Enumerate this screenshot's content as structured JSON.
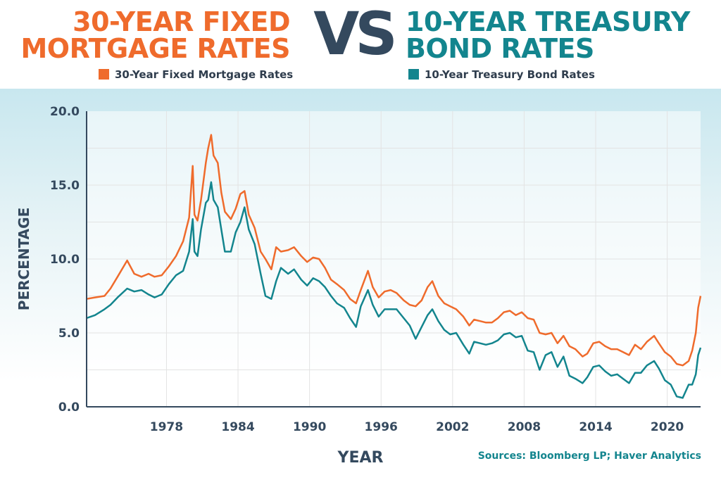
{
  "header": {
    "title_left_line1": "30-YEAR FIXED",
    "title_left_line2": "MORTGAGE RATES",
    "vs": "VS",
    "title_right_line1": "10-YEAR TREASURY",
    "title_right_line2": "BOND RATES"
  },
  "colors": {
    "mortgage": "#ef6b2c",
    "treasury": "#13858e",
    "axis": "#34495e",
    "grid": "#e3e3e3"
  },
  "sources": "Sources: Bloomberg LP; Haver Analytics",
  "chart_data": {
    "type": "line",
    "xlabel": "YEAR",
    "ylabel": "PERCENTAGE",
    "xlim": [
      1971.3,
      2022.8
    ],
    "ylim": [
      0,
      20
    ],
    "xticks": [
      1978,
      1984,
      1990,
      1996,
      2002,
      2008,
      2014,
      2020
    ],
    "yticks": [
      0,
      5,
      10,
      15,
      20
    ],
    "ytick_labels": [
      "0.0",
      "5.0",
      "10.0",
      "15.0",
      "20.0"
    ],
    "grid": true,
    "legend_position": "top",
    "series": [
      {
        "name": "30-Year Fixed Mortgage Rates",
        "color": "#ef6b2c",
        "x": [
          1971.3,
          1972,
          1972.8,
          1973.3,
          1973.9,
          1974.7,
          1975.3,
          1975.9,
          1976.5,
          1977,
          1977.6,
          1978.2,
          1978.8,
          1979.4,
          1979.9,
          1980.2,
          1980.35,
          1980.6,
          1980.9,
          1981.3,
          1981.5,
          1981.75,
          1981.95,
          1982.3,
          1982.6,
          1982.9,
          1983.4,
          1983.8,
          1984.2,
          1984.55,
          1984.9,
          1985.4,
          1985.9,
          1986.3,
          1986.8,
          1987.2,
          1987.6,
          1988.2,
          1988.7,
          1989.3,
          1989.8,
          1990.3,
          1990.8,
          1991.3,
          1991.8,
          1992.3,
          1992.9,
          1993.4,
          1993.9,
          1994.3,
          1994.9,
          1995.3,
          1995.8,
          1996.3,
          1996.8,
          1997.3,
          1997.9,
          1998.4,
          1998.9,
          1999.4,
          1999.9,
          2000.3,
          2000.8,
          2001.3,
          2001.8,
          2002.3,
          2002.9,
          2003.4,
          2003.8,
          2004.3,
          2004.8,
          2005.3,
          2005.8,
          2006.3,
          2006.8,
          2007.3,
          2007.8,
          2008.3,
          2008.8,
          2009.3,
          2009.8,
          2010.3,
          2010.8,
          2011.3,
          2011.8,
          2012.3,
          2012.9,
          2013.3,
          2013.8,
          2014.3,
          2014.8,
          2015.3,
          2015.8,
          2016.3,
          2016.8,
          2017.3,
          2017.8,
          2018.3,
          2018.9,
          2019.3,
          2019.8,
          2020.3,
          2020.8,
          2021.3,
          2021.8,
          2022.1,
          2022.4,
          2022.6,
          2022.8
        ],
        "y": [
          7.3,
          7.4,
          7.5,
          8.0,
          8.8,
          9.9,
          9.0,
          8.8,
          9.0,
          8.8,
          8.9,
          9.5,
          10.2,
          11.2,
          12.8,
          16.3,
          13.0,
          12.6,
          14.0,
          16.5,
          17.5,
          18.4,
          17.0,
          16.5,
          14.5,
          13.2,
          12.7,
          13.4,
          14.4,
          14.6,
          13.0,
          12.1,
          10.5,
          10.0,
          9.3,
          10.8,
          10.5,
          10.6,
          10.8,
          10.2,
          9.8,
          10.1,
          10.0,
          9.4,
          8.6,
          8.3,
          7.9,
          7.3,
          7.0,
          7.9,
          9.2,
          8.1,
          7.4,
          7.8,
          7.9,
          7.7,
          7.2,
          6.9,
          6.8,
          7.2,
          8.1,
          8.5,
          7.5,
          7.0,
          6.8,
          6.6,
          6.1,
          5.5,
          5.9,
          5.8,
          5.7,
          5.7,
          6.0,
          6.4,
          6.5,
          6.2,
          6.4,
          6.0,
          5.9,
          5.0,
          4.9,
          5.0,
          4.3,
          4.8,
          4.1,
          3.9,
          3.4,
          3.6,
          4.3,
          4.4,
          4.1,
          3.9,
          3.9,
          3.7,
          3.5,
          4.2,
          3.9,
          4.4,
          4.8,
          4.3,
          3.7,
          3.4,
          2.9,
          2.8,
          3.1,
          3.8,
          5.0,
          6.7,
          7.5
        ]
      },
      {
        "name": "10-Year Treasury Bond Rates",
        "color": "#13858e",
        "x": [
          1971.3,
          1972,
          1972.8,
          1973.3,
          1973.9,
          1974.7,
          1975.3,
          1975.9,
          1976.5,
          1977,
          1977.6,
          1978.2,
          1978.8,
          1979.4,
          1979.9,
          1980.2,
          1980.35,
          1980.6,
          1980.9,
          1981.3,
          1981.5,
          1981.75,
          1981.95,
          1982.3,
          1982.6,
          1982.9,
          1983.4,
          1983.8,
          1984.2,
          1984.55,
          1984.9,
          1985.4,
          1985.9,
          1986.3,
          1986.8,
          1987.2,
          1987.6,
          1988.2,
          1988.7,
          1989.3,
          1989.8,
          1990.3,
          1990.8,
          1991.3,
          1991.8,
          1992.3,
          1992.9,
          1993.4,
          1993.9,
          1994.3,
          1994.9,
          1995.3,
          1995.8,
          1996.3,
          1996.8,
          1997.3,
          1997.9,
          1998.4,
          1998.9,
          1999.4,
          1999.9,
          2000.3,
          2000.8,
          2001.3,
          2001.8,
          2002.3,
          2002.9,
          2003.4,
          2003.8,
          2004.3,
          2004.8,
          2005.3,
          2005.8,
          2006.3,
          2006.8,
          2007.3,
          2007.8,
          2008.3,
          2008.8,
          2009.3,
          2009.8,
          2010.3,
          2010.8,
          2011.3,
          2011.8,
          2012.3,
          2012.9,
          2013.3,
          2013.8,
          2014.3,
          2014.8,
          2015.3,
          2015.8,
          2016.3,
          2016.8,
          2017.3,
          2017.8,
          2018.3,
          2018.9,
          2019.3,
          2019.8,
          2020.3,
          2020.8,
          2021.3,
          2021.8,
          2022.1,
          2022.4,
          2022.6,
          2022.8
        ],
        "y": [
          6.0,
          6.2,
          6.6,
          6.9,
          7.4,
          8.0,
          7.8,
          7.9,
          7.6,
          7.4,
          7.6,
          8.3,
          8.9,
          9.2,
          10.5,
          12.7,
          10.5,
          10.2,
          12.0,
          13.8,
          14.0,
          15.2,
          14.0,
          13.5,
          12.0,
          10.5,
          10.5,
          11.8,
          12.5,
          13.5,
          12.0,
          11.0,
          9.0,
          7.5,
          7.3,
          8.5,
          9.4,
          9.0,
          9.3,
          8.6,
          8.2,
          8.7,
          8.5,
          8.1,
          7.5,
          7.0,
          6.7,
          6.0,
          5.4,
          6.8,
          7.9,
          6.9,
          6.1,
          6.6,
          6.6,
          6.6,
          6.0,
          5.5,
          4.6,
          5.4,
          6.2,
          6.6,
          5.8,
          5.2,
          4.9,
          5.0,
          4.2,
          3.6,
          4.4,
          4.3,
          4.2,
          4.3,
          4.5,
          4.9,
          5.0,
          4.7,
          4.8,
          3.8,
          3.7,
          2.5,
          3.5,
          3.7,
          2.7,
          3.4,
          2.1,
          1.9,
          1.6,
          2.0,
          2.7,
          2.8,
          2.4,
          2.1,
          2.2,
          1.9,
          1.6,
          2.3,
          2.3,
          2.8,
          3.1,
          2.6,
          1.8,
          1.5,
          0.7,
          0.6,
          1.5,
          1.5,
          2.2,
          3.5,
          4.0
        ]
      }
    ]
  }
}
